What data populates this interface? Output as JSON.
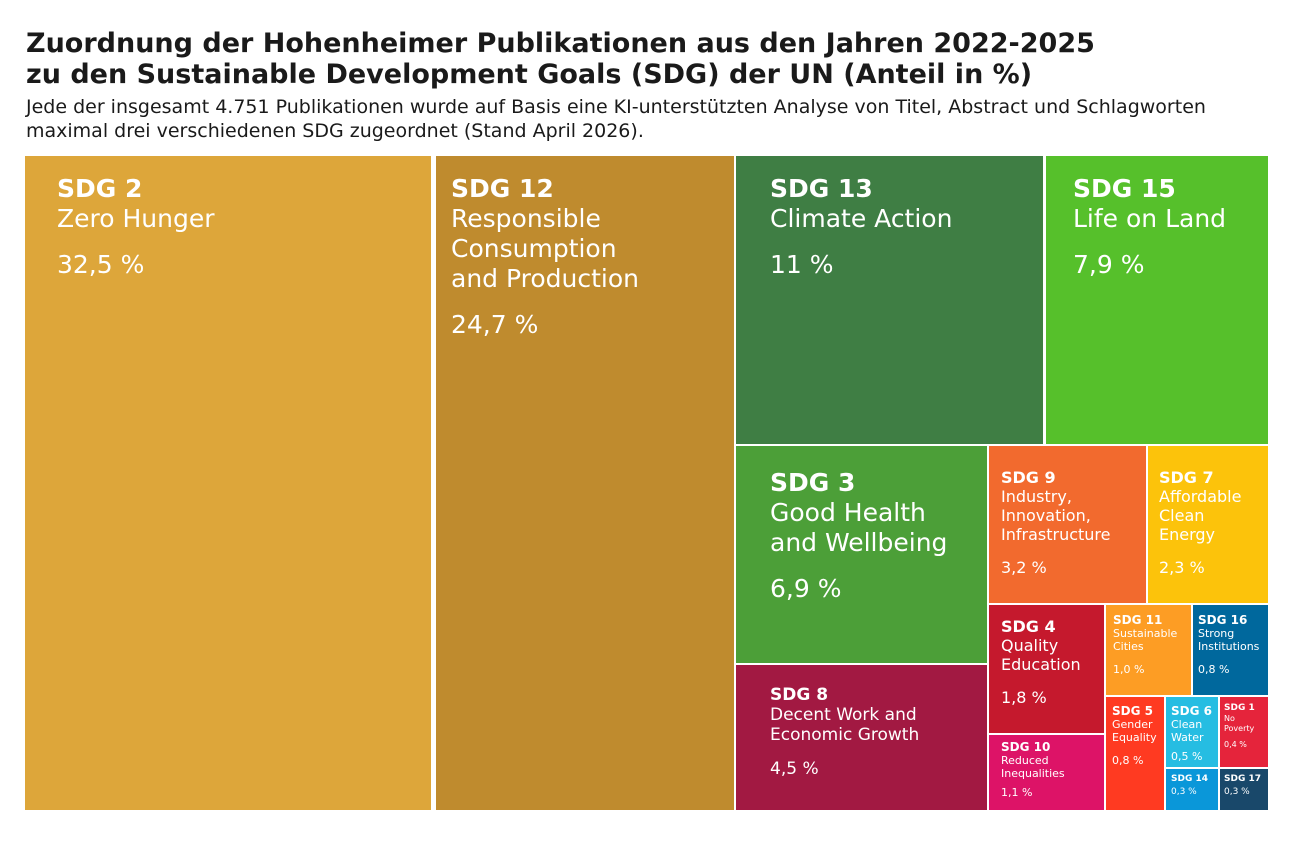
{
  "title": "Zuordnung der Hohenheimer Publikationen aus den Jahren 2022-2025\nzu den Sustainable Development Goals (SDG) der UN (Anteil in %)",
  "subtitle": "Jede der insgesamt 4.751 Publikationen wurde auf Basis eine KI-unterstützten Analyse von Titel, Abstract und Schlagworten maximal drei verschiedenen SDG zugeordnet (Stand April 2026).",
  "chart_data": {
    "type": "treemap",
    "unit": "%",
    "items": [
      {
        "code": "SDG 2",
        "name": "Zero Hunger",
        "value": 32.5,
        "label": "32,5 %",
        "color": "#DDA63A"
      },
      {
        "code": "SDG 12",
        "name": "Responsible\nConsumption\nand Production",
        "value": 24.7,
        "label": "24,7 %",
        "color": "#BF8B2E"
      },
      {
        "code": "SDG 13",
        "name": "Climate Action",
        "value": 11,
        "label": "11 %",
        "color": "#3F7E44"
      },
      {
        "code": "SDG 15",
        "name": "Life on Land",
        "value": 7.9,
        "label": "7,9 %",
        "color": "#56C02B"
      },
      {
        "code": "SDG 3",
        "name": "Good Health\nand Wellbeing",
        "value": 6.9,
        "label": "6,9 %",
        "color": "#4C9F38"
      },
      {
        "code": "SDG 8",
        "name": "Decent Work and\nEconomic Growth",
        "value": 4.5,
        "label": "4,5 %",
        "color": "#A21942"
      },
      {
        "code": "SDG 9",
        "name": "Industry,\nInnovation,\nInfrastructure",
        "value": 3.2,
        "label": "3,2 %",
        "color": "#F26A2E"
      },
      {
        "code": "SDG 7",
        "name": "Affordable\nClean\nEnergy",
        "value": 2.3,
        "label": "2,3 %",
        "color": "#FCC30B"
      },
      {
        "code": "SDG 4",
        "name": "Quality\nEducation",
        "value": 1.8,
        "label": "1,8 %",
        "color": "#C5192D"
      },
      {
        "code": "SDG 10",
        "name": "Reduced\nInequalities",
        "value": 1.1,
        "label": "1,1 %",
        "color": "#DD1367"
      },
      {
        "code": "SDG 11",
        "name": "Sustainable\nCities",
        "value": 1.0,
        "label": "1,0 %",
        "color": "#FD9D24"
      },
      {
        "code": "SDG 16",
        "name": "Strong\nInstitutions",
        "value": 0.8,
        "label": "0,8 %",
        "color": "#00689D"
      },
      {
        "code": "SDG 5",
        "name": "Gender\nEquality",
        "value": 0.8,
        "label": "0,8 %",
        "color": "#FF3A21"
      },
      {
        "code": "SDG 6",
        "name": "Clean\nWater",
        "value": 0.5,
        "label": "0,5 %",
        "color": "#26BDE2"
      },
      {
        "code": "SDG 1",
        "name": "No\nPoverty",
        "value": 0.4,
        "label": "0,4 %",
        "color": "#E5243B"
      },
      {
        "code": "SDG 14",
        "name": "",
        "value": 0.3,
        "label": "0,3 %",
        "color": "#0A97D9"
      },
      {
        "code": "SDG 17",
        "name": "",
        "value": 0.3,
        "label": "0,3 %",
        "color": "#19486A"
      }
    ]
  }
}
